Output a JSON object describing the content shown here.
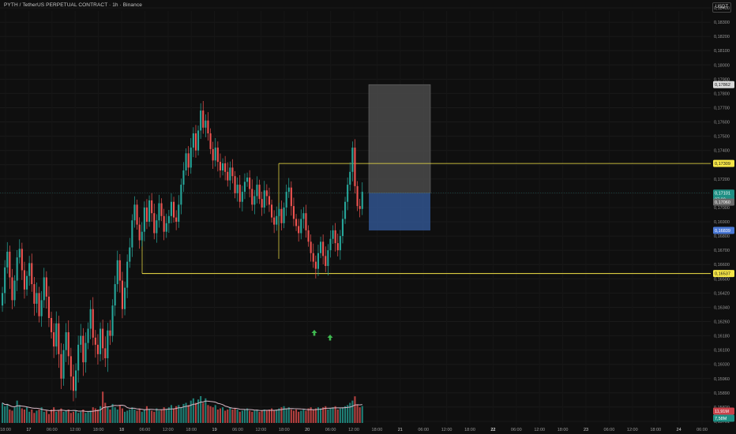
{
  "header": {
    "title": "PYTH / TetherUS PERPETUAL CONTRACT · 1h · Binance"
  },
  "currency_button": "USDT",
  "colors": {
    "up": "#26a69a",
    "down": "#ef5350",
    "level": "#f5e547",
    "target": "#b7b7b7",
    "stop": "#3d63a8"
  },
  "chart_data": {
    "type": "candlestick",
    "y_ticks": [
      "0,18400",
      "0,18300",
      "0,18200",
      "0,18100",
      "0,18000",
      "0,17900",
      "0,17800",
      "0,17700",
      "0,17600",
      "0,17500",
      "0,17400",
      "0,17300",
      "0,17200",
      "0,17100",
      "0,17000",
      "0,16900",
      "0,16800",
      "0,16700",
      "0,16600",
      "0,16500",
      "0,16420",
      "0,16340",
      "0,16260",
      "0,16180",
      "0,16100",
      "0,16030",
      "0,15960",
      "0,15890",
      "0,15820",
      "0,15761"
    ],
    "x_ticks": [
      "18:00",
      "17",
      "06:00",
      "12:00",
      "18:00",
      "18",
      "06:00",
      "12:00",
      "18:00",
      "19",
      "06:00",
      "12:00",
      "18:00",
      "20",
      "06:00",
      "12:00",
      "18:00",
      "21",
      "06:00",
      "12:00",
      "18:00",
      "22",
      "06:00",
      "12:00",
      "18:00",
      "23",
      "06:00",
      "12:00",
      "18:00",
      "24",
      "06:00"
    ],
    "price_labels": {
      "target": "0,17862",
      "level_high": "0,17309",
      "last_price": "0,17101",
      "countdown": "27:22",
      "last_close_alt": "0,17060",
      "stop": "0,16839",
      "level_low": "0,16537",
      "volume_1": "11,91M",
      "volume_2": "7,58M"
    },
    "levels": [
      {
        "name": "resistance",
        "price": 0.17309
      },
      {
        "name": "support",
        "price": 0.16537
      }
    ],
    "position": {
      "entry": 0.17101,
      "target": 0.17862,
      "stop": 0.16839
    },
    "closes": [
      0.1642,
      0.1658,
      0.1669,
      0.1651,
      0.1638,
      0.1649,
      0.1665,
      0.1671,
      0.1656,
      0.1644,
      0.1652,
      0.1661,
      0.1647,
      0.1636,
      0.1642,
      0.1629,
      0.1638,
      0.1651,
      0.164,
      0.1628,
      0.162,
      0.1612,
      0.1625,
      0.1608,
      0.1596,
      0.161,
      0.162,
      0.1607,
      0.1597,
      0.159,
      0.16,
      0.1613,
      0.1618,
      0.1604,
      0.1614,
      0.1622,
      0.1633,
      0.1617,
      0.1613,
      0.1608,
      0.1622,
      0.1611,
      0.1606,
      0.1621,
      0.1618,
      0.1635,
      0.1647,
      0.1663,
      0.1649,
      0.1633,
      0.1645,
      0.1662,
      0.1672,
      0.1691,
      0.1702,
      0.1688,
      0.1677,
      0.1683,
      0.17,
      0.169,
      0.1705,
      0.1696,
      0.1682,
      0.1691,
      0.1703,
      0.1694,
      0.1683,
      0.1689,
      0.1694,
      0.1704,
      0.1693,
      0.169,
      0.1702,
      0.1716,
      0.1726,
      0.1738,
      0.1728,
      0.1742,
      0.1752,
      0.174,
      0.1754,
      0.1768,
      0.1756,
      0.1761,
      0.1752,
      0.1741,
      0.1733,
      0.1742,
      0.1732,
      0.1726,
      0.1731,
      0.1725,
      0.1719,
      0.1728,
      0.1722,
      0.171,
      0.1716,
      0.1704,
      0.1711,
      0.1718,
      0.1721,
      0.1713,
      0.1702,
      0.1708,
      0.1716,
      0.1706,
      0.17,
      0.1712,
      0.1708,
      0.1702,
      0.1693,
      0.1688,
      0.1694,
      0.1699,
      0.1689,
      0.17,
      0.1711,
      0.1714,
      0.1701,
      0.1692,
      0.1687,
      0.1682,
      0.1692,
      0.1696,
      0.1684,
      0.1676,
      0.1668,
      0.1662,
      0.1657,
      0.1668,
      0.1676,
      0.1666,
      0.1659,
      0.167,
      0.1678,
      0.1684,
      0.1675,
      0.167,
      0.168,
      0.1692,
      0.1704,
      0.1716,
      0.1725,
      0.1742,
      0.1715,
      0.1701,
      0.1699,
      0.1711
    ],
    "volumes": [
      9.0,
      7.5,
      8.5,
      6.0,
      5.5,
      7.0,
      10.0,
      8.0,
      6.5,
      6.0,
      7.0,
      5.0,
      6.0,
      4.5,
      5.5,
      6.0,
      7.0,
      5.0,
      5.5,
      4.0,
      6.0,
      7.0,
      5.0,
      5.5,
      6.5,
      5.0,
      5.5,
      6.0,
      4.5,
      5.0,
      5.5,
      4.5,
      5.0,
      6.0,
      4.5,
      5.0,
      5.5,
      7.0,
      6.5,
      6.0,
      7.5,
      14.0,
      9.0,
      7.0,
      6.0,
      8.5,
      7.0,
      6.0,
      8.0,
      6.5,
      5.0,
      5.5,
      6.0,
      7.0,
      6.0,
      5.5,
      6.5,
      5.0,
      6.0,
      7.5,
      6.0,
      5.5,
      5.0,
      6.5,
      5.5,
      6.0,
      7.0,
      6.0,
      7.0,
      8.0,
      6.5,
      7.5,
      8.0,
      7.0,
      8.5,
      9.0,
      8.0,
      10.0,
      11.0,
      9.0,
      10.5,
      12.0,
      9.0,
      11.0,
      8.0,
      7.5,
      7.0,
      8.0,
      6.0,
      6.5,
      7.0,
      5.5,
      6.0,
      7.0,
      6.0,
      6.5,
      6.0,
      5.0,
      5.5,
      6.0,
      6.5,
      5.5,
      5.0,
      5.5,
      6.0,
      5.0,
      5.5,
      6.0,
      5.5,
      6.0,
      6.5,
      5.5,
      6.0,
      6.5,
      7.0,
      7.5,
      6.5,
      7.0,
      6.0,
      5.5,
      6.0,
      5.0,
      5.5,
      6.0,
      5.5,
      6.5,
      7.0,
      6.0,
      6.5,
      7.0,
      6.5,
      7.0,
      7.5,
      6.0,
      6.5,
      7.0,
      7.5,
      6.0,
      6.5,
      7.0,
      7.5,
      8.0,
      9.0,
      10.0,
      11.91,
      8.0,
      7.0,
      7.58
    ]
  }
}
